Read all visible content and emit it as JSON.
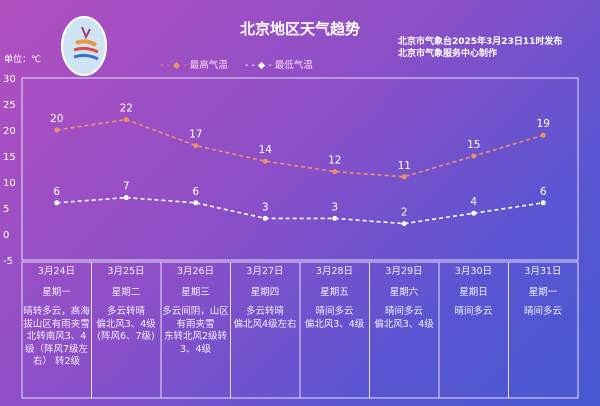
{
  "header": {
    "title": "北京地区天气趋势",
    "publish_line1": "北京市气象台2025年3月23日11时发布",
    "publish_line2": "北京市气象服务中心制作",
    "unit": "单位：℃",
    "logo_icon": "meteorological-service-logo"
  },
  "chart_data": {
    "type": "line",
    "title": "北京地区天气趋势",
    "ylabel": "单位：℃",
    "ylim": [
      -5,
      30
    ],
    "yticks": [
      30,
      25,
      20,
      15,
      10,
      5,
      0,
      -5
    ],
    "grid": false,
    "legend": "top",
    "categories": [
      "3月24日",
      "3月25日",
      "3月26日",
      "3月27日",
      "3月28日",
      "3月29日",
      "3月30日",
      "3月31日"
    ],
    "series": [
      {
        "name": "最高气温",
        "color": "#f0906a",
        "values": [
          20,
          22,
          17,
          14,
          12,
          11,
          15,
          19
        ]
      },
      {
        "name": "最低气温",
        "color": "#ffffff",
        "values": [
          6,
          7,
          6,
          3,
          3,
          2,
          4,
          6
        ]
      }
    ]
  },
  "table": [
    {
      "date": "3月24日",
      "weekday": "星期一",
      "weather": "晴转多云，高海拔山区有雨夹雪",
      "wind": "北转南风3、4级（阵风7级左右） 转2级"
    },
    {
      "date": "3月25日",
      "weekday": "星期二",
      "weather": "多云转晴",
      "wind": "偏北风3、4级(阵风6、7级)"
    },
    {
      "date": "3月26日",
      "weekday": "星期三",
      "weather": "多云间阴，山区有雨夹雪",
      "wind": "东转北风2级转3、4级"
    },
    {
      "date": "3月27日",
      "weekday": "星期四",
      "weather": "多云转晴",
      "wind": "偏北风4级左右"
    },
    {
      "date": "3月28日",
      "weekday": "星期五",
      "weather": "晴间多云",
      "wind": "偏北风3、4级"
    },
    {
      "date": "3月29日",
      "weekday": "星期六",
      "weather": "晴间多云",
      "wind": "偏北风3、4级"
    },
    {
      "date": "3月30日",
      "weekday": "星期日",
      "weather": "晴间多云",
      "wind": ""
    },
    {
      "date": "3月31日",
      "weekday": "星期一",
      "weather": "晴间多云",
      "wind": ""
    }
  ]
}
